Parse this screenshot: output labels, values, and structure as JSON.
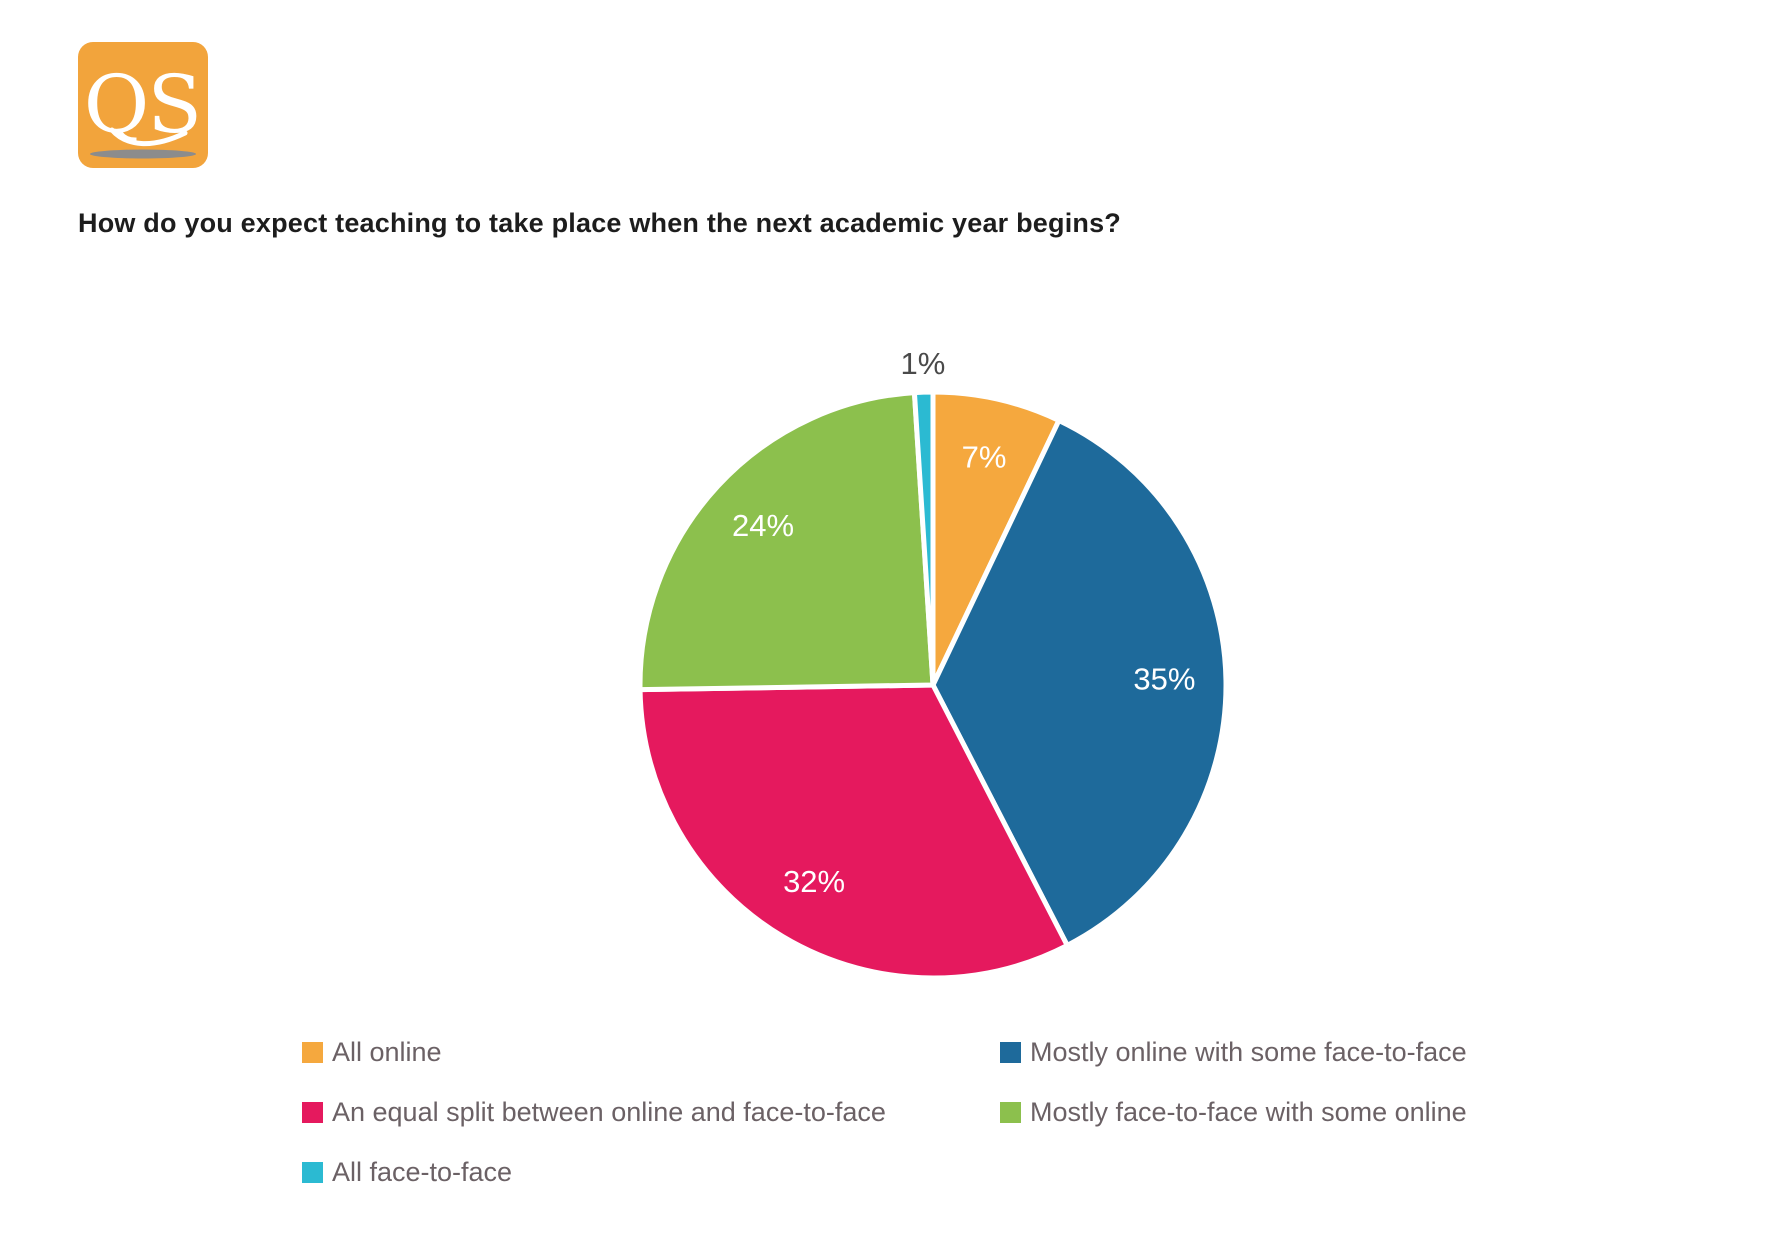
{
  "title": "How do you expect teaching to take place when the next academic year begins?",
  "logo": {
    "text": "QS",
    "bg_color": "#F2A43C",
    "letter_color": "#ffffff",
    "shadow_color": "#8C8C8C"
  },
  "chart_data": {
    "type": "pie",
    "title": "How do you expect teaching to take place when the next academic year begins?",
    "legend_position": "bottom",
    "direction": "clockwise",
    "start_angle_deg": 0,
    "inside_label_color": "#ffffff",
    "outside_label_color": "#4a4a4a",
    "border_color": "#ffffff",
    "slices": [
      {
        "label": "All online",
        "value": 7,
        "pct_label": "7%",
        "color": "#F5A83E",
        "label_placement": "inside"
      },
      {
        "label": "Mostly online with some face-to-face",
        "value": 35,
        "pct_label": "35%",
        "color": "#1E6A9B",
        "label_placement": "inside"
      },
      {
        "label": "An equal split between online and face-to-face",
        "value": 32,
        "pct_label": "32%",
        "color": "#E5195E",
        "label_placement": "inside"
      },
      {
        "label": "Mostly face-to-face with some online",
        "value": 24,
        "pct_label": "24%",
        "color": "#8CC04D",
        "label_placement": "inside"
      },
      {
        "label": "All face-to-face",
        "value": 1,
        "pct_label": "1%",
        "color": "#2BBAD2",
        "label_placement": "outside"
      }
    ]
  }
}
